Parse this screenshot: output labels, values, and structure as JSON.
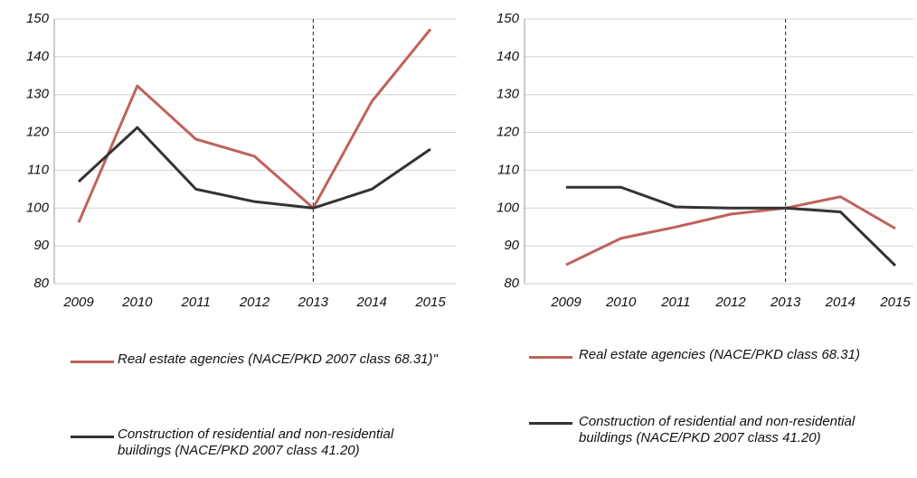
{
  "chart_data": [
    {
      "type": "line",
      "categories": [
        "2009",
        "2010",
        "2011",
        "2012",
        "2013",
        "2014",
        "2015"
      ],
      "series": [
        {
          "name": "Real estate agencies (NACE/PKD 2007 class 68.31)\"",
          "color": "#c0625a",
          "values": [
            96.2,
            132.3,
            118.2,
            113.7,
            100,
            128.2,
            147.3
          ]
        },
        {
          "name": "Construction of residential and non-residential buildings (NACE/PKD 2007 class 41.20)",
          "color": "#333333",
          "values": [
            107,
            121.3,
            105,
            101.7,
            100,
            105,
            115.6
          ]
        }
      ],
      "ylim": [
        80,
        150
      ],
      "yticks": [
        80,
        90,
        100,
        110,
        120,
        130,
        140,
        150
      ],
      "grid": true,
      "vline": "2013"
    },
    {
      "type": "line",
      "categories": [
        "2009",
        "2010",
        "2011",
        "2012",
        "2013",
        "2014",
        "2015"
      ],
      "series": [
        {
          "name": "Real estate agencies (NACE/PKD class 68.31)",
          "color": "#c0625a",
          "values": [
            85,
            92,
            95,
            98.4,
            100,
            103,
            94.6
          ]
        },
        {
          "name": "Construction of residential and non-residential buildings (NACE/PKD 2007 class 41.20)",
          "color": "#333333",
          "values": [
            105.5,
            105.5,
            100.3,
            100,
            100,
            99,
            84.8
          ]
        }
      ],
      "ylim": [
        80,
        150
      ],
      "yticks": [
        80,
        90,
        100,
        110,
        120,
        130,
        140,
        150
      ],
      "grid": true,
      "vline": "2013"
    }
  ]
}
